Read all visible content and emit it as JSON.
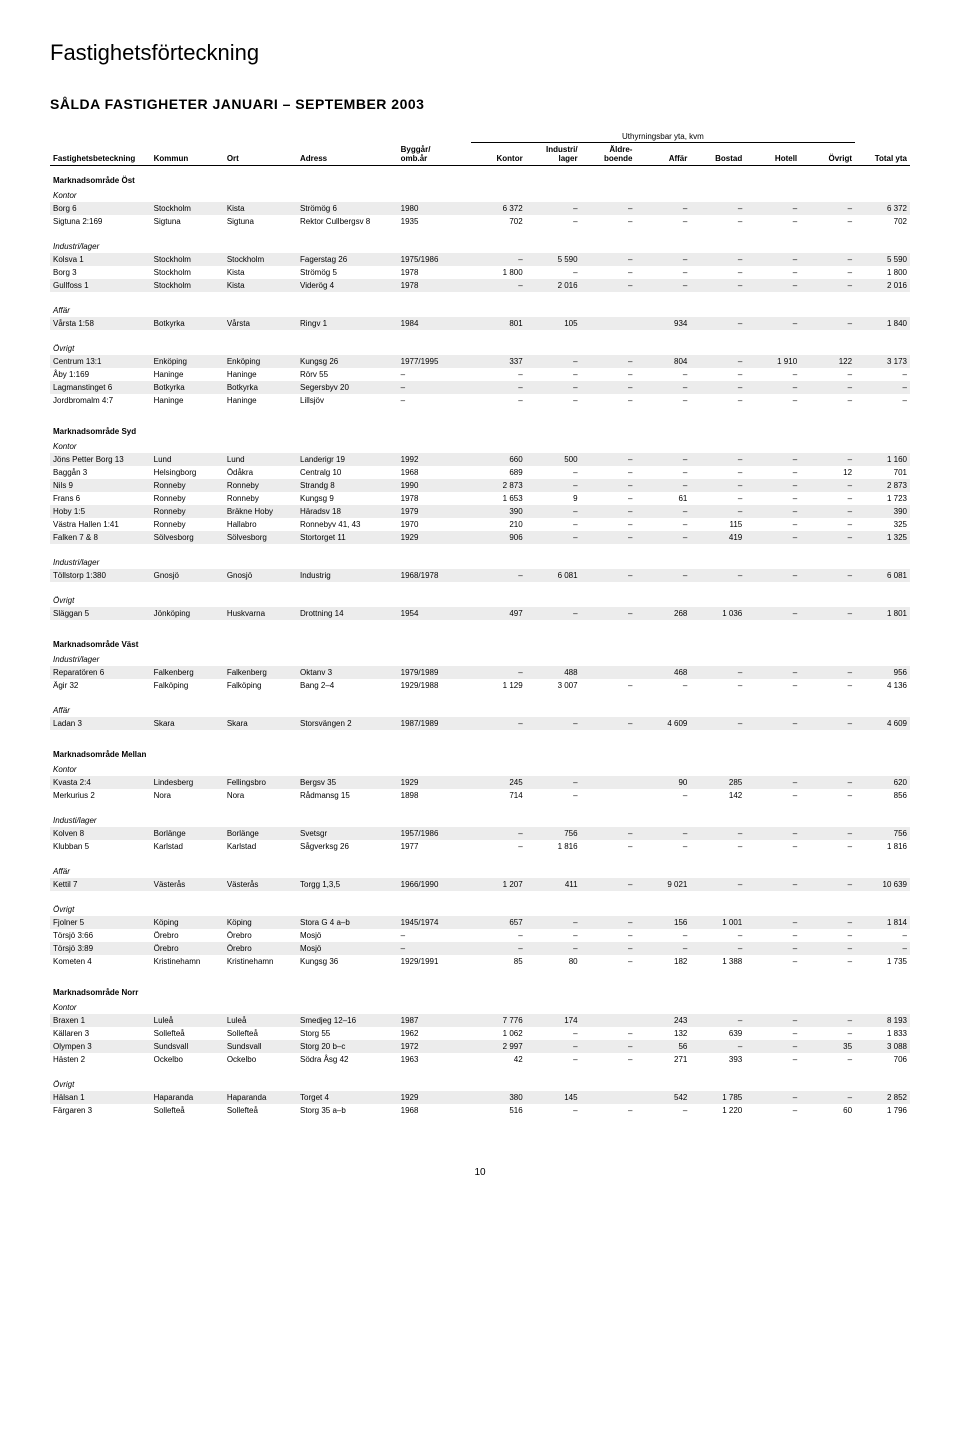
{
  "page_title": "Fastighetsförteckning",
  "heading": "SÅLDA FASTIGHETER JANUARI – SEPTEMBER 2003",
  "super_header": "Uthyrningsbar yta, kvm",
  "columns": [
    "Fastighetsbeteckning",
    "Kommun",
    "Ort",
    "Adress",
    "Byggår/\nomb.år",
    "Kontor",
    "Industri/\nlager",
    "Äldre-\nboende",
    "Affär",
    "Bostad",
    "Hotell",
    "Övrigt",
    "Total yta"
  ],
  "page_number": "10",
  "sections": [
    {
      "title": "Marknadsområde Öst",
      "groups": [
        {
          "label": "Kontor",
          "rows": [
            [
              "Borg 6",
              "Stockholm",
              "Kista",
              "Strömög 6",
              "1980",
              "6 372",
              "–",
              "–",
              "–",
              "–",
              "–",
              "–",
              "6 372"
            ],
            [
              "Sigtuna 2:169",
              "Sigtuna",
              "Sigtuna",
              "Rektor Cullbergsv 8",
              "1935",
              "702",
              "–",
              "–",
              "–",
              "–",
              "–",
              "–",
              "702"
            ]
          ]
        },
        {
          "label": "Industri/lager",
          "rows": [
            [
              "Kolsva 1",
              "Stockholm",
              "Stockholm",
              "Fagerstag 26",
              "1975/1986",
              "–",
              "5 590",
              "–",
              "–",
              "–",
              "–",
              "–",
              "5 590"
            ],
            [
              "Borg 3",
              "Stockholm",
              "Kista",
              "Strömög 5",
              "1978",
              "1 800",
              "–",
              "–",
              "–",
              "–",
              "–",
              "–",
              "1 800"
            ],
            [
              "Gullfoss 1",
              "Stockholm",
              "Kista",
              "Viderög 4",
              "1978",
              "–",
              "2 016",
              "–",
              "–",
              "–",
              "–",
              "–",
              "2 016"
            ]
          ]
        },
        {
          "label": "Affär",
          "rows": [
            [
              "Vårsta 1:58",
              "Botkyrka",
              "Vårsta",
              "Ringv 1",
              "1984",
              "801",
              "105",
              "",
              "934",
              "–",
              "–",
              "–",
              "1 840"
            ]
          ]
        },
        {
          "label": "Övrigt",
          "rows": [
            [
              "Centrum 13:1",
              "Enköping",
              "Enköping",
              "Kungsg 26",
              "1977/1995",
              "337",
              "–",
              "–",
              "804",
              "–",
              "1 910",
              "122",
              "3 173"
            ],
            [
              "Åby 1:169",
              "Haninge",
              "Haninge",
              "Rörv 55",
              "–",
              "–",
              "–",
              "–",
              "–",
              "–",
              "–",
              "–",
              "–"
            ],
            [
              "Lagmanstinget 6",
              "Botkyrka",
              "Botkyrka",
              "Segersbyv 20",
              "–",
              "–",
              "–",
              "–",
              "–",
              "–",
              "–",
              "–",
              "–"
            ],
            [
              "Jordbromalm 4:7",
              "Haninge",
              "Haninge",
              "Lillsjöv",
              "–",
              "–",
              "–",
              "–",
              "–",
              "–",
              "–",
              "–",
              "–"
            ]
          ]
        }
      ]
    },
    {
      "title": "Marknadsområde Syd",
      "groups": [
        {
          "label": "Kontor",
          "rows": [
            [
              "Jöns Petter Borg 13",
              "Lund",
              "Lund",
              "Landerigr 19",
              "1992",
              "660",
              "500",
              "–",
              "–",
              "–",
              "–",
              "–",
              "1 160"
            ],
            [
              "Baggån 3",
              "Helsingborg",
              "Ödåkra",
              "Centralg 10",
              "1968",
              "689",
              "–",
              "–",
              "–",
              "–",
              "–",
              "12",
              "701"
            ],
            [
              "Nils 9",
              "Ronneby",
              "Ronneby",
              "Strandg 8",
              "1990",
              "2 873",
              "–",
              "–",
              "–",
              "–",
              "–",
              "–",
              "2 873"
            ],
            [
              "Frans 6",
              "Ronneby",
              "Ronneby",
              "Kungsg 9",
              "1978",
              "1 653",
              "9",
              "–",
              "61",
              "–",
              "–",
              "–",
              "1 723"
            ],
            [
              "Hoby 1:5",
              "Ronneby",
              "Bräkne Hoby",
              "Häradsv 18",
              "1979",
              "390",
              "–",
              "–",
              "–",
              "–",
              "–",
              "–",
              "390"
            ],
            [
              "Västra Hallen 1:41",
              "Ronneby",
              "Hallabro",
              "Ronnebyv 41, 43",
              "1970",
              "210",
              "–",
              "–",
              "–",
              "115",
              "–",
              "–",
              "325"
            ],
            [
              "Falken 7 & 8",
              "Sölvesborg",
              "Sölvesborg",
              "Stortorget 11",
              "1929",
              "906",
              "–",
              "–",
              "–",
              "419",
              "–",
              "–",
              "1 325"
            ]
          ]
        },
        {
          "label": "Industri/lager",
          "rows": [
            [
              "Töllstorp 1:380",
              "Gnosjö",
              "Gnosjö",
              "Industrig",
              "1968/1978",
              "–",
              "6 081",
              "–",
              "–",
              "–",
              "–",
              "–",
              "6 081"
            ]
          ]
        },
        {
          "label": "Övrigt",
          "rows": [
            [
              "Släggan 5",
              "Jönköping",
              "Huskvarna",
              "Drottning 14",
              "1954",
              "497",
              "–",
              "–",
              "268",
              "1 036",
              "–",
              "–",
              "1 801"
            ]
          ]
        }
      ]
    },
    {
      "title": "Marknadsområde Väst",
      "groups": [
        {
          "label": "Industri/lager",
          "rows": [
            [
              "Reparatören 6",
              "Falkenberg",
              "Falkenberg",
              "Oktanv 3",
              "1979/1989",
              "–",
              "488",
              "",
              "468",
              "–",
              "–",
              "–",
              "956"
            ],
            [
              "Ägir 32",
              "Falköping",
              "Falköping",
              "Bang 2–4",
              "1929/1988",
              "1 129",
              "3 007",
              "–",
              "–",
              "–",
              "–",
              "–",
              "4 136"
            ]
          ]
        },
        {
          "label": "Affär",
          "rows": [
            [
              "Ladan 3",
              "Skara",
              "Skara",
              "Storsvängen 2",
              "1987/1989",
              "–",
              "–",
              "–",
              "4 609",
              "–",
              "–",
              "–",
              "4 609"
            ]
          ]
        }
      ]
    },
    {
      "title": "Marknadsområde Mellan",
      "groups": [
        {
          "label": "Kontor",
          "rows": [
            [
              "Kvasta 2:4",
              "Lindesberg",
              "Fellingsbro",
              "Bergsv 35",
              "1929",
              "245",
              "–",
              "",
              "90",
              "285",
              "–",
              "–",
              "620"
            ],
            [
              "Merkurius 2",
              "Nora",
              "Nora",
              "Rådmansg 15",
              "1898",
              "714",
              "–",
              "",
              "–",
              "142",
              "–",
              "–",
              "856"
            ]
          ]
        },
        {
          "label": "Industi/lager",
          "rows": [
            [
              "Kolven 8",
              "Borlänge",
              "Borlänge",
              "Svetsgr",
              "1957/1986",
              "–",
              "756",
              "–",
              "–",
              "–",
              "–",
              "–",
              "756"
            ],
            [
              "Klubban 5",
              "Karlstad",
              "Karlstad",
              "Sågverksg 26",
              "1977",
              "–",
              "1 816",
              "–",
              "–",
              "–",
              "–",
              "–",
              "1 816"
            ]
          ]
        },
        {
          "label": "Affär",
          "rows": [
            [
              "Kettil 7",
              "Västerås",
              "Västerås",
              "Torgg 1,3,5",
              "1966/1990",
              "1 207",
              "411",
              "–",
              "9 021",
              "–",
              "–",
              "–",
              "10 639"
            ]
          ]
        },
        {
          "label": "Övrigt",
          "rows": [
            [
              "Fjolner 5",
              "Köping",
              "Köping",
              "Stora G 4 a–b",
              "1945/1974",
              "657",
              "–",
              "–",
              "156",
              "1 001",
              "–",
              "–",
              "1 814"
            ],
            [
              "Törsjö 3:66",
              "Örebro",
              "Örebro",
              "Mosjö",
              "–",
              "–",
              "–",
              "–",
              "–",
              "–",
              "–",
              "–",
              "–"
            ],
            [
              "Törsjö 3:89",
              "Örebro",
              "Örebro",
              "Mosjö",
              "–",
              "–",
              "–",
              "–",
              "–",
              "–",
              "–",
              "–",
              "–"
            ],
            [
              "Kometen 4",
              "Kristinehamn",
              "Kristinehamn",
              "Kungsg 36",
              "1929/1991",
              "85",
              "80",
              "–",
              "182",
              "1 388",
              "–",
              "–",
              "1 735"
            ]
          ]
        }
      ]
    },
    {
      "title": "Marknadsområde Norr",
      "groups": [
        {
          "label": "Kontor",
          "rows": [
            [
              "Braxen 1",
              "Luleå",
              "Luleå",
              "Smedjeg 12–16",
              "1987",
              "7 776",
              "174",
              "",
              "243",
              "–",
              "–",
              "–",
              "8 193"
            ],
            [
              "Källaren 3",
              "Sollefteå",
              "Sollefteå",
              "Storg 55",
              "1962",
              "1 062",
              "–",
              "–",
              "132",
              "639",
              "–",
              "–",
              "1 833"
            ],
            [
              "Olympen 3",
              "Sundsvall",
              "Sundsvall",
              "Storg 20 b–c",
              "1972",
              "2 997",
              "–",
              "–",
              "56",
              "–",
              "–",
              "35",
              "3 088"
            ],
            [
              "Hästen 2",
              "Ockelbo",
              "Ockelbo",
              "Södra Åsg 42",
              "1963",
              "42",
              "–",
              "–",
              "271",
              "393",
              "–",
              "–",
              "706"
            ]
          ]
        },
        {
          "label": "Övrigt",
          "rows": [
            [
              "Hälsan 1",
              "Haparanda",
              "Haparanda",
              "Torget 4",
              "1929",
              "380",
              "145",
              "",
              "542",
              "1 785",
              "–",
              "–",
              "2 852"
            ],
            [
              "Färgaren 3",
              "Sollefteå",
              "Sollefteå",
              "Storg 35 a–b",
              "1968",
              "516",
              "–",
              "–",
              "–",
              "1 220",
              "–",
              "60",
              "1 796"
            ]
          ]
        }
      ]
    }
  ]
}
